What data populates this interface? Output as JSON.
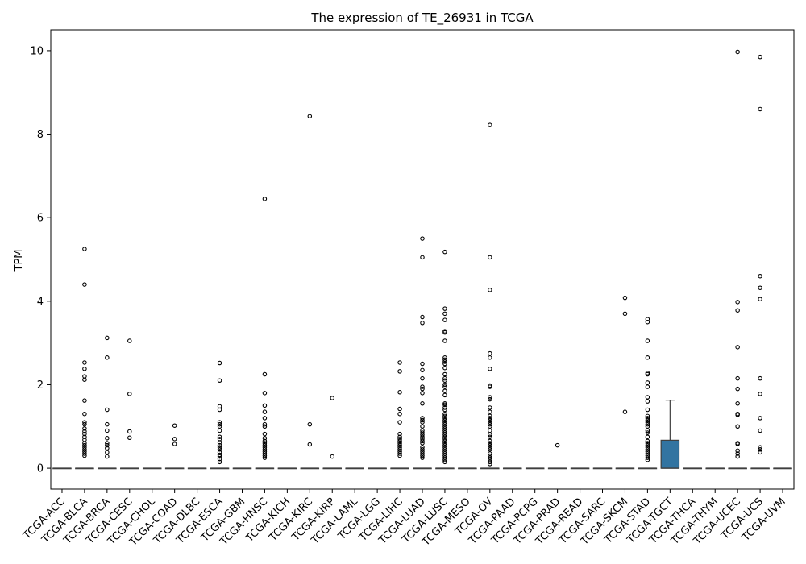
{
  "chart_data": {
    "type": "box",
    "title": "The expression of TE_26931 in TCGA",
    "xlabel": "",
    "ylabel": "TPM",
    "ylim": [
      -0.5,
      10.5
    ],
    "yticks": [
      0,
      2,
      4,
      6,
      8,
      10
    ],
    "grid": false,
    "legend": "none",
    "box_color": "#3274a1",
    "categories": [
      "TCGA-ACC",
      "TCGA-BLCA",
      "TCGA-BRCA",
      "TCGA-CESC",
      "TCGA-CHOL",
      "TCGA-COAD",
      "TCGA-DLBC",
      "TCGA-ESCA",
      "TCGA-GBM",
      "TCGA-HNSC",
      "TCGA-KICH",
      "TCGA-KIRC",
      "TCGA-KIRP",
      "TCGA-LAML",
      "TCGA-LGG",
      "TCGA-LIHC",
      "TCGA-LUAD",
      "TCGA-LUSC",
      "TCGA-MESO",
      "TCGA-OV",
      "TCGA-PAAD",
      "TCGA-PCPG",
      "TCGA-PRAD",
      "TCGA-READ",
      "TCGA-SARC",
      "TCGA-SKCM",
      "TCGA-STAD",
      "TCGA-TGCT",
      "TCGA-THCA",
      "TCGA-THYM",
      "TCGA-UCEC",
      "TCGA-UCS",
      "TCGA-UVM"
    ],
    "boxes": [
      {
        "q1": 0,
        "median": 0,
        "q3": 0,
        "whisker_low": 0,
        "whisker_high": 0,
        "outliers": []
      },
      {
        "q1": 0,
        "median": 0,
        "q3": 0,
        "whisker_low": 0,
        "whisker_high": 0,
        "outliers": [
          5.25,
          4.4,
          2.53,
          2.38,
          2.2,
          2.12,
          1.62,
          1.3,
          1.1,
          1.05,
          0.95,
          0.88,
          0.82,
          0.75,
          0.68,
          0.6,
          0.55,
          0.5,
          0.45,
          0.4,
          0.35,
          0.3
        ]
      },
      {
        "q1": 0,
        "median": 0,
        "q3": 0,
        "whisker_low": 0,
        "whisker_high": 0,
        "outliers": [
          3.12,
          2.65,
          1.4,
          1.05,
          0.9,
          0.72,
          0.6,
          0.55,
          0.48,
          0.38,
          0.28
        ]
      },
      {
        "q1": 0,
        "median": 0,
        "q3": 0,
        "whisker_low": 0,
        "whisker_high": 0,
        "outliers": [
          3.05,
          1.78,
          0.88,
          0.73
        ]
      },
      {
        "q1": 0,
        "median": 0,
        "q3": 0,
        "whisker_low": 0,
        "whisker_high": 0,
        "outliers": []
      },
      {
        "q1": 0,
        "median": 0,
        "q3": 0,
        "whisker_low": 0,
        "whisker_high": 0,
        "outliers": [
          1.02,
          0.7,
          0.58
        ]
      },
      {
        "q1": 0,
        "median": 0,
        "q3": 0,
        "whisker_low": 0,
        "whisker_high": 0,
        "outliers": []
      },
      {
        "q1": 0,
        "median": 0,
        "q3": 0,
        "whisker_low": 0,
        "whisker_high": 0,
        "outliers": [
          2.52,
          2.1,
          1.48,
          1.4,
          1.1,
          1.05,
          1.0,
          0.9,
          0.75,
          0.7,
          0.62,
          0.55,
          0.5,
          0.45,
          0.38,
          0.32,
          0.28,
          0.22,
          0.15
        ]
      },
      {
        "q1": 0,
        "median": 0,
        "q3": 0,
        "whisker_low": 0,
        "whisker_high": 0,
        "outliers": []
      },
      {
        "q1": 0,
        "median": 0,
        "q3": 0,
        "whisker_low": 0,
        "whisker_high": 0,
        "outliers": [
          6.45,
          2.25,
          1.8,
          1.5,
          1.35,
          1.2,
          1.05,
          1.0,
          0.82,
          0.72,
          0.65,
          0.6,
          0.55,
          0.5,
          0.45,
          0.4,
          0.35,
          0.3,
          0.25
        ]
      },
      {
        "q1": 0,
        "median": 0,
        "q3": 0,
        "whisker_low": 0,
        "whisker_high": 0,
        "outliers": []
      },
      {
        "q1": 0,
        "median": 0,
        "q3": 0,
        "whisker_low": 0,
        "whisker_high": 0,
        "outliers": [
          8.43,
          1.05,
          0.57
        ]
      },
      {
        "q1": 0,
        "median": 0,
        "q3": 0,
        "whisker_low": 0,
        "whisker_high": 0,
        "outliers": [
          1.68,
          0.28
        ]
      },
      {
        "q1": 0,
        "median": 0,
        "q3": 0,
        "whisker_low": 0,
        "whisker_high": 0,
        "outliers": []
      },
      {
        "q1": 0,
        "median": 0,
        "q3": 0,
        "whisker_low": 0,
        "whisker_high": 0,
        "outliers": []
      },
      {
        "q1": 0,
        "median": 0,
        "q3": 0,
        "whisker_low": 0,
        "whisker_high": 0,
        "outliers": [
          2.53,
          2.32,
          1.82,
          1.42,
          1.3,
          1.1,
          0.82,
          0.75,
          0.7,
          0.65,
          0.6,
          0.55,
          0.5,
          0.45,
          0.4,
          0.35,
          0.3
        ]
      },
      {
        "q1": 0,
        "median": 0,
        "q3": 0,
        "whisker_low": 0,
        "whisker_high": 0,
        "outliers": [
          5.5,
          5.05,
          3.62,
          3.48,
          2.5,
          2.35,
          2.15,
          1.95,
          1.9,
          1.8,
          1.55,
          1.2,
          1.15,
          1.1,
          1.0,
          0.9,
          0.85,
          0.8,
          0.75,
          0.7,
          0.65,
          0.6,
          0.5,
          0.45,
          0.4,
          0.35,
          0.3,
          0.25
        ]
      },
      {
        "q1": 0,
        "median": 0,
        "q3": 0,
        "whisker_low": 0,
        "whisker_high": 0,
        "outliers": [
          5.18,
          3.82,
          3.7,
          3.55,
          3.28,
          3.25,
          3.05,
          2.65,
          2.6,
          2.55,
          2.5,
          2.4,
          2.25,
          2.15,
          2.1,
          2.0,
          1.95,
          1.85,
          1.75,
          1.55,
          1.52,
          1.45,
          1.4,
          1.3,
          1.25,
          1.2,
          1.15,
          1.1,
          1.05,
          1.0,
          0.95,
          0.9,
          0.85,
          0.8,
          0.75,
          0.7,
          0.65,
          0.6,
          0.55,
          0.5,
          0.45,
          0.4,
          0.35,
          0.3,
          0.25,
          0.2,
          0.15
        ]
      },
      {
        "q1": 0,
        "median": 0,
        "q3": 0,
        "whisker_low": 0,
        "whisker_high": 0,
        "outliers": []
      },
      {
        "q1": 0,
        "median": 0,
        "q3": 0,
        "whisker_low": 0,
        "whisker_high": 0,
        "outliers": [
          8.22,
          5.05,
          4.27,
          2.75,
          2.65,
          2.38,
          1.98,
          1.95,
          1.7,
          1.65,
          1.45,
          1.35,
          1.25,
          1.2,
          1.15,
          1.1,
          1.05,
          1.0,
          0.9,
          0.8,
          0.75,
          0.65,
          0.6,
          0.55,
          0.5,
          0.45,
          0.35,
          0.3,
          0.25,
          0.2,
          0.15,
          0.1
        ]
      },
      {
        "q1": 0,
        "median": 0,
        "q3": 0,
        "whisker_low": 0,
        "whisker_high": 0,
        "outliers": []
      },
      {
        "q1": 0,
        "median": 0,
        "q3": 0,
        "whisker_low": 0,
        "whisker_high": 0,
        "outliers": []
      },
      {
        "q1": 0,
        "median": 0,
        "q3": 0,
        "whisker_low": 0,
        "whisker_high": 0,
        "outliers": [
          0.55
        ]
      },
      {
        "q1": 0,
        "median": 0,
        "q3": 0,
        "whisker_low": 0,
        "whisker_high": 0,
        "outliers": []
      },
      {
        "q1": 0,
        "median": 0,
        "q3": 0,
        "whisker_low": 0,
        "whisker_high": 0,
        "outliers": []
      },
      {
        "q1": 0,
        "median": 0,
        "q3": 0,
        "whisker_low": 0,
        "whisker_high": 0,
        "outliers": [
          4.08,
          3.7,
          1.35
        ]
      },
      {
        "q1": 0,
        "median": 0,
        "q3": 0,
        "whisker_low": 0,
        "whisker_high": 0,
        "outliers": [
          3.57,
          3.5,
          3.05,
          2.65,
          2.28,
          2.25,
          2.05,
          1.95,
          1.7,
          1.6,
          1.4,
          1.25,
          1.2,
          1.15,
          1.1,
          1.05,
          1.0,
          0.9,
          0.85,
          0.75,
          0.65,
          0.6,
          0.55,
          0.5,
          0.45,
          0.4,
          0.35,
          0.3,
          0.25,
          0.2
        ]
      },
      {
        "q1": 0,
        "median": 0,
        "q3": 0.67,
        "whisker_low": 0,
        "whisker_high": 1.63,
        "outliers": []
      },
      {
        "q1": 0,
        "median": 0,
        "q3": 0,
        "whisker_low": 0,
        "whisker_high": 0,
        "outliers": []
      },
      {
        "q1": 0,
        "median": 0,
        "q3": 0,
        "whisker_low": 0,
        "whisker_high": 0,
        "outliers": []
      },
      {
        "q1": 0,
        "median": 0,
        "q3": 0,
        "whisker_low": 0,
        "whisker_high": 0,
        "outliers": [
          9.97,
          3.98,
          3.78,
          2.9,
          2.15,
          1.9,
          1.55,
          1.3,
          1.28,
          1.0,
          0.6,
          0.58,
          0.42,
          0.35,
          0.28
        ]
      },
      {
        "q1": 0,
        "median": 0,
        "q3": 0,
        "whisker_low": 0,
        "whisker_high": 0,
        "outliers": [
          9.85,
          8.6,
          4.6,
          4.32,
          4.05,
          2.15,
          1.78,
          1.2,
          0.9,
          0.5,
          0.45,
          0.38
        ]
      },
      {
        "q1": 0,
        "median": 0,
        "q3": 0,
        "whisker_low": 0,
        "whisker_high": 0,
        "outliers": []
      }
    ]
  }
}
